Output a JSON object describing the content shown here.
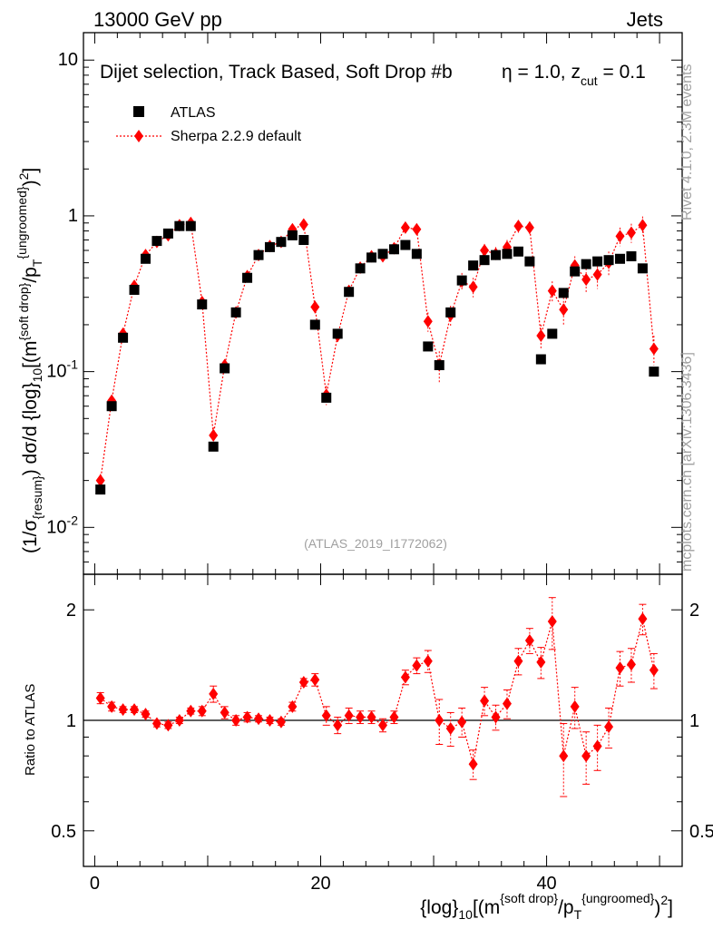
{
  "header": {
    "energy": "13000 GeV pp",
    "category": "Jets"
  },
  "side_labels": {
    "rivet": "Rivet 4.1.0,  2.3M events",
    "mcplots": "mcplots.cern.ch [arXiv:1306.3436]"
  },
  "chart_data": [
    {
      "type": "scatter",
      "panel": "main",
      "title_parts": {
        "main": "Dijet selection, Track Based, Soft Drop #b",
        "beta": "η = 1.0, z",
        "cut_sub": "cut",
        "cut_val": " = 0.1"
      },
      "watermark": "(ATLAS_2019_I1772062)",
      "ylabel_parts": [
        "(1/σ",
        "{resum}",
        ") dσ/d {log}",
        "10",
        "[(m",
        "{soft drop}",
        "/p",
        "T",
        "{ungroomed}",
        ")",
        "2",
        "]"
      ],
      "xlim": [
        -1,
        52
      ],
      "ylim": [
        0.005,
        15
      ],
      "yscale": "log",
      "yticks": [
        {
          "value": 0.01,
          "mant": "10",
          "exp": "-2"
        },
        {
          "value": 0.1,
          "mant": "10",
          "exp": "-1"
        },
        {
          "value": 1,
          "mant": "1",
          "exp": ""
        },
        {
          "value": 10,
          "mant": "10",
          "exp": ""
        }
      ],
      "legend": {
        "position": "top-left",
        "entries": [
          "ATLAS",
          "Sherpa 2.2.9 default"
        ]
      },
      "series": [
        {
          "name": "ATLAS",
          "marker": "square",
          "color": "#000000",
          "x": [
            0.5,
            1.5,
            2.5,
            3.5,
            4.5,
            5.5,
            6.5,
            7.5,
            8.5,
            9.5,
            10.5,
            11.5,
            12.5,
            13.5,
            14.5,
            15.5,
            16.5,
            17.5,
            18.5,
            19.5,
            20.5,
            21.5,
            22.5,
            23.5,
            24.5,
            25.5,
            26.5,
            27.5,
            28.5,
            29.5,
            30.5,
            31.5,
            32.5,
            33.5,
            34.5,
            35.5,
            36.5,
            37.5,
            38.5,
            39.5,
            40.5,
            41.5,
            42.5,
            43.5,
            44.5,
            45.5,
            46.5,
            47.5,
            48.5,
            49.5
          ],
          "values": [
            0.0175,
            0.06,
            0.165,
            0.335,
            0.53,
            0.69,
            0.77,
            0.86,
            0.86,
            0.27,
            0.033,
            0.105,
            0.24,
            0.4,
            0.56,
            0.63,
            0.68,
            0.75,
            0.7,
            0.2,
            0.068,
            0.175,
            0.325,
            0.46,
            0.54,
            0.57,
            0.61,
            0.65,
            0.57,
            0.145,
            0.11,
            0.24,
            0.385,
            0.48,
            0.52,
            0.56,
            0.57,
            0.59,
            0.51,
            0.12,
            0.175,
            0.32,
            0.44,
            0.49,
            0.51,
            0.52,
            0.53,
            0.55,
            0.46,
            0.1
          ]
        },
        {
          "name": "Sherpa 2.2.9 default",
          "marker": "diamond",
          "color": "#ff0000",
          "x": [
            0.5,
            1.5,
            2.5,
            3.5,
            4.5,
            5.5,
            6.5,
            7.5,
            8.5,
            9.5,
            10.5,
            11.5,
            12.5,
            13.5,
            14.5,
            15.5,
            16.5,
            17.5,
            18.5,
            19.5,
            20.5,
            21.5,
            22.5,
            23.5,
            24.5,
            25.5,
            26.5,
            27.5,
            28.5,
            29.5,
            30.5,
            31.5,
            32.5,
            33.5,
            34.5,
            35.5,
            36.5,
            37.5,
            38.5,
            39.5,
            40.5,
            41.5,
            42.5,
            43.5,
            44.5,
            45.5,
            46.5,
            47.5,
            48.5,
            49.5
          ],
          "values": [
            0.02,
            0.065,
            0.175,
            0.355,
            0.56,
            0.68,
            0.75,
            0.87,
            0.9,
            0.28,
            0.039,
            0.11,
            0.24,
            0.41,
            0.56,
            0.64,
            0.68,
            0.82,
            0.88,
            0.26,
            0.071,
            0.17,
            0.33,
            0.465,
            0.55,
            0.55,
            0.62,
            0.84,
            0.82,
            0.21,
            0.11,
            0.23,
            0.38,
            0.35,
            0.6,
            0.57,
            0.63,
            0.86,
            0.84,
            0.17,
            0.33,
            0.25,
            0.48,
            0.39,
            0.42,
            0.5,
            0.74,
            0.78,
            0.87,
            0.14
          ],
          "errors": [
            0.002,
            0.006,
            0.012,
            0.02,
            0.03,
            0.035,
            0.04,
            0.045,
            0.05,
            0.02,
            0.005,
            0.01,
            0.015,
            0.025,
            0.03,
            0.035,
            0.035,
            0.045,
            0.05,
            0.025,
            0.01,
            0.015,
            0.02,
            0.025,
            0.03,
            0.035,
            0.04,
            0.06,
            0.06,
            0.03,
            0.025,
            0.035,
            0.05,
            0.05,
            0.06,
            0.06,
            0.07,
            0.08,
            0.08,
            0.03,
            0.05,
            0.05,
            0.07,
            0.07,
            0.08,
            0.09,
            0.1,
            0.11,
            0.12,
            0.03
          ]
        }
      ]
    },
    {
      "type": "scatter",
      "panel": "ratio",
      "ylabel": "Ratio to ATLAS",
      "xlabel_parts": [
        "{log}",
        "10",
        "[(m",
        "{soft drop}",
        "/p",
        "T",
        "{ungroomed}",
        ")",
        "2",
        "]"
      ],
      "xlim": [
        -1,
        52
      ],
      "xticks": [
        0,
        20,
        40
      ],
      "ylim": [
        0.4,
        2.5
      ],
      "yscale": "log",
      "yticks": [
        0.5,
        1,
        2
      ],
      "reference_line": 1,
      "series": [
        {
          "name": "Sherpa 2.2.9 default / ATLAS",
          "color": "#ff0000",
          "x": [
            0.5,
            1.5,
            2.5,
            3.5,
            4.5,
            5.5,
            6.5,
            7.5,
            8.5,
            9.5,
            10.5,
            11.5,
            12.5,
            13.5,
            14.5,
            15.5,
            16.5,
            17.5,
            18.5,
            19.5,
            20.5,
            21.5,
            22.5,
            23.5,
            24.5,
            25.5,
            26.5,
            27.5,
            28.5,
            29.5,
            30.5,
            31.5,
            32.5,
            33.5,
            34.5,
            35.5,
            36.5,
            37.5,
            38.5,
            39.5,
            40.5,
            41.5,
            42.5,
            43.5,
            44.5,
            45.5,
            46.5,
            47.5,
            48.5,
            49.5
          ],
          "values": [
            1.15,
            1.09,
            1.07,
            1.07,
            1.04,
            0.98,
            0.97,
            1.0,
            1.06,
            1.06,
            1.18,
            1.05,
            1.0,
            1.02,
            1.01,
            1.0,
            0.99,
            1.09,
            1.27,
            1.29,
            1.03,
            0.97,
            1.03,
            1.02,
            1.02,
            0.97,
            1.02,
            1.31,
            1.41,
            1.45,
            1.0,
            0.95,
            0.99,
            0.76,
            1.13,
            1.02,
            1.11,
            1.45,
            1.65,
            1.44,
            1.86,
            0.8,
            1.09,
            0.8,
            0.85,
            0.96,
            1.39,
            1.42,
            1.89,
            1.37
          ],
          "errors": [
            0.04,
            0.03,
            0.02,
            0.02,
            0.02,
            0.02,
            0.02,
            0.02,
            0.02,
            0.03,
            0.06,
            0.04,
            0.03,
            0.03,
            0.02,
            0.02,
            0.02,
            0.03,
            0.03,
            0.05,
            0.06,
            0.05,
            0.05,
            0.04,
            0.04,
            0.04,
            0.04,
            0.06,
            0.07,
            0.1,
            0.14,
            0.1,
            0.09,
            0.07,
            0.1,
            0.08,
            0.1,
            0.12,
            0.13,
            0.14,
            0.3,
            0.18,
            0.14,
            0.13,
            0.12,
            0.12,
            0.15,
            0.15,
            0.18,
            0.15
          ]
        }
      ]
    }
  ]
}
